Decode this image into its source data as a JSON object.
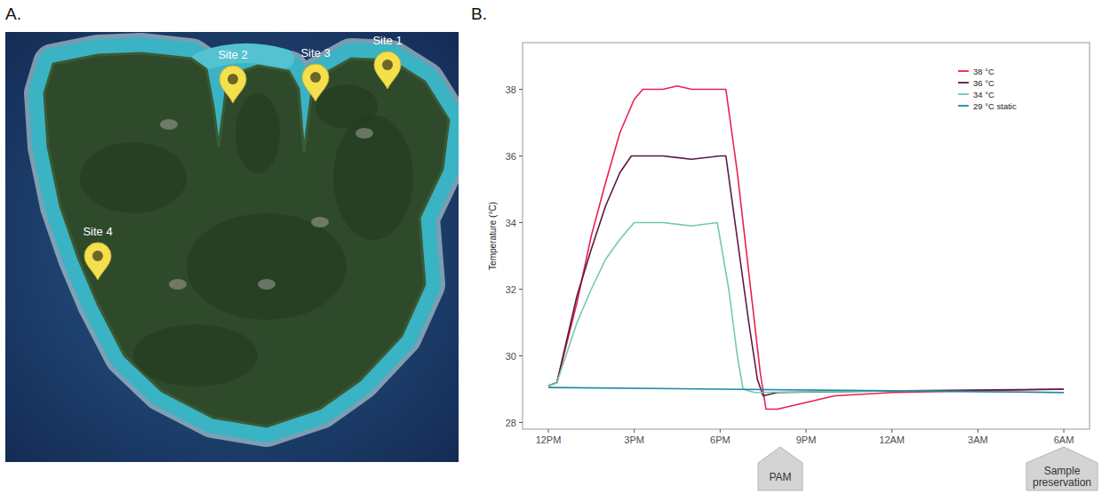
{
  "panels": {
    "a": {
      "letter": "A.",
      "map_sites": [
        "Site 1",
        "Site 2",
        "Site 3",
        "Site 4"
      ]
    },
    "b": {
      "letter": "B."
    }
  },
  "chart_data": {
    "type": "line",
    "y_label": "Temperature (°C)",
    "xlim": [
      -0.9,
      18.9
    ],
    "xticks": [
      {
        "value": 0,
        "label": "12PM"
      },
      {
        "value": 3,
        "label": "3PM"
      },
      {
        "value": 6,
        "label": "6PM"
      },
      {
        "value": 9,
        "label": "9PM"
      },
      {
        "value": 12,
        "label": "12AM"
      },
      {
        "value": 15,
        "label": "3AM"
      },
      {
        "value": 18,
        "label": "6AM"
      }
    ],
    "ylim": [
      27.8,
      39.4
    ],
    "yticks": [
      28,
      30,
      32,
      34,
      36,
      38
    ],
    "grid": false,
    "legend": "top-right",
    "series": [
      {
        "name": "38 °C",
        "color": "#e8214f",
        "x": [
          0,
          0.3,
          1,
          1.5,
          2,
          2.5,
          3,
          3.3,
          4,
          4.5,
          5,
          5.5,
          6.2,
          6.6,
          7,
          7.4,
          7.6,
          8,
          9,
          10,
          12,
          15,
          18
        ],
        "values": [
          29.1,
          29.2,
          31.6,
          33.6,
          35.2,
          36.7,
          37.7,
          38.0,
          38.0,
          38.1,
          38.0,
          38.0,
          38.0,
          35.5,
          32.5,
          29.5,
          28.4,
          28.4,
          28.6,
          28.8,
          28.9,
          28.95,
          29.0
        ]
      },
      {
        "name": "36 °C",
        "color": "#5a1846",
        "x": [
          0,
          0.3,
          1,
          1.5,
          2,
          2.5,
          2.9,
          4,
          5,
          6,
          6.2,
          6.6,
          7,
          7.3,
          7.5,
          8,
          12,
          18
        ],
        "values": [
          29.1,
          29.2,
          31.8,
          33.2,
          34.5,
          35.5,
          36.0,
          36.0,
          35.9,
          36.0,
          36.0,
          33.5,
          31.0,
          29.3,
          28.8,
          28.9,
          28.95,
          29.0
        ]
      },
      {
        "name": "34 °C",
        "color": "#74c9ac",
        "x": [
          0,
          0.3,
          1,
          1.5,
          2,
          2.5,
          3,
          4,
          5,
          5.9,
          6.3,
          6.6,
          6.8,
          7.2,
          12,
          18
        ],
        "values": [
          29.1,
          29.2,
          31.0,
          32.0,
          32.9,
          33.5,
          34.0,
          34.0,
          33.9,
          34.0,
          32.0,
          30.0,
          29.0,
          28.9,
          28.95,
          28.9
        ]
      },
      {
        "name": "29 °C static",
        "color": "#1b8aa6",
        "x": [
          0,
          6,
          12,
          18
        ],
        "values": [
          29.05,
          29.0,
          28.95,
          28.9
        ]
      }
    ],
    "annotations": [
      {
        "text": "PAM",
        "x": 8.1
      },
      {
        "text": "Sample preservation",
        "x": 18
      }
    ]
  }
}
